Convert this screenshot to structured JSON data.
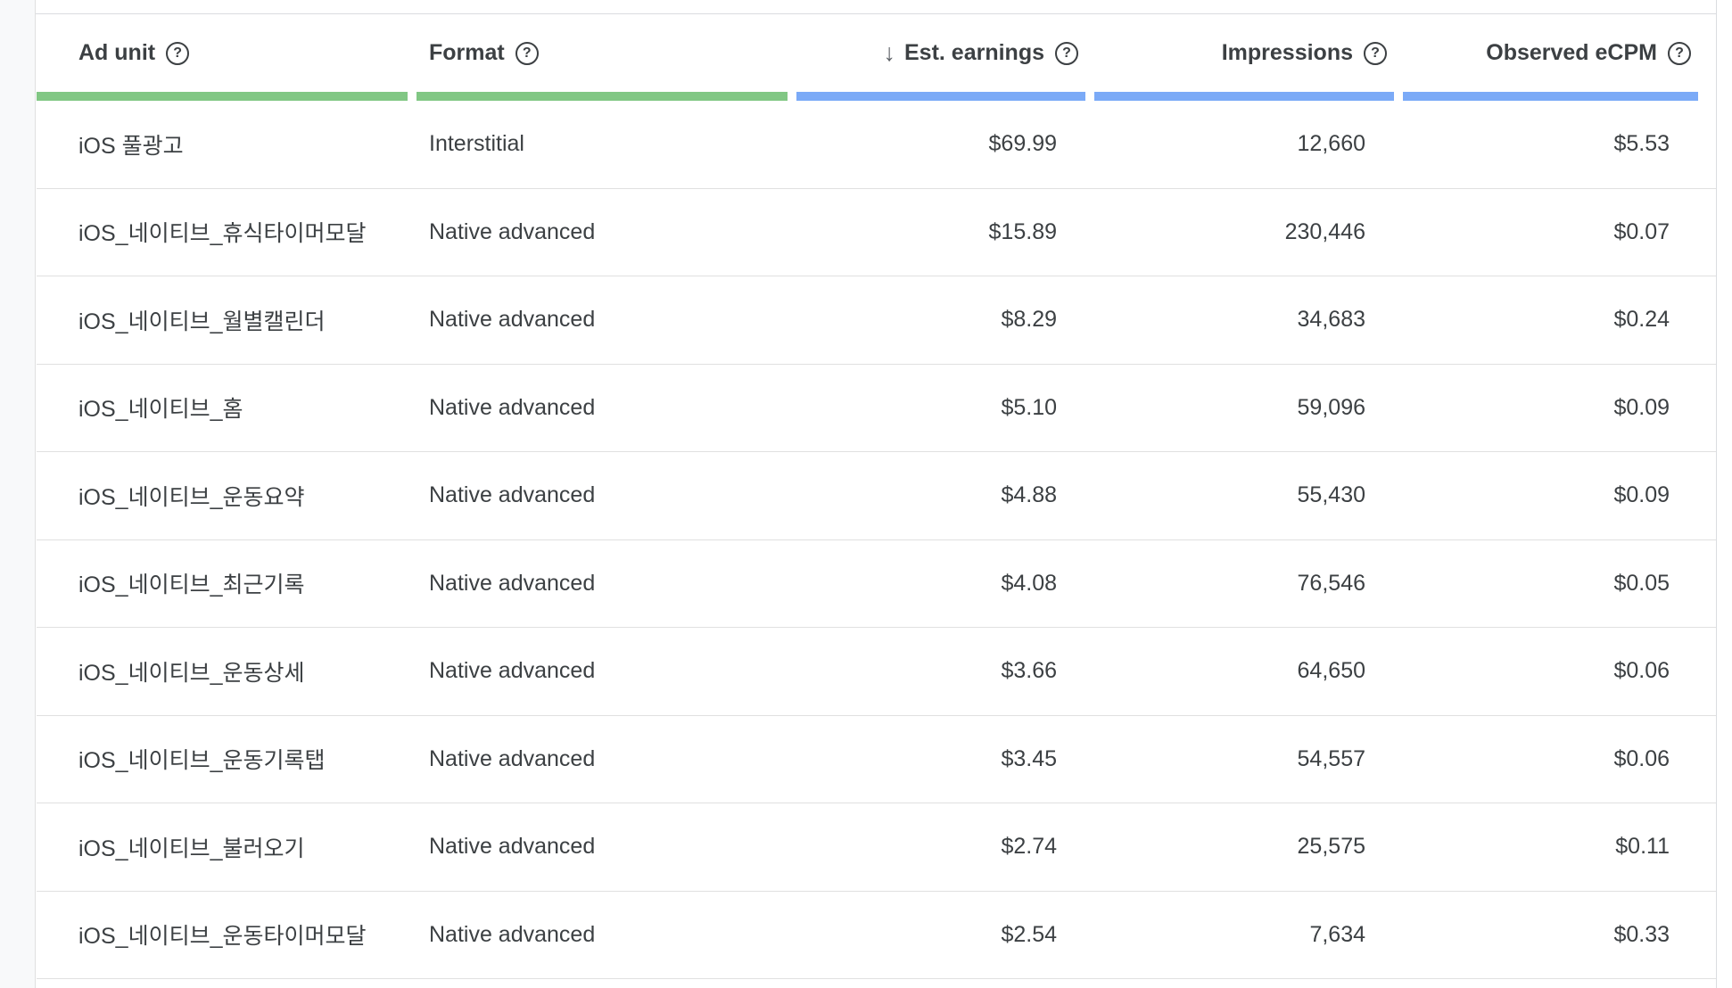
{
  "table": {
    "columns": [
      {
        "label": "Ad unit",
        "type": "dimension"
      },
      {
        "label": "Format",
        "type": "dimension"
      },
      {
        "label": "Est. earnings",
        "type": "metric",
        "sorted": "descending"
      },
      {
        "label": "Impressions",
        "type": "metric"
      },
      {
        "label": "Observed eCPM",
        "type": "metric"
      }
    ],
    "rows": [
      {
        "ad_unit": "iOS 풀광고",
        "format": "Interstitial",
        "est_earnings": "$69.99",
        "impressions": "12,660",
        "observed_ecpm": "$5.53"
      },
      {
        "ad_unit": "iOS_네이티브_휴식타이머모달",
        "format": "Native advanced",
        "est_earnings": "$15.89",
        "impressions": "230,446",
        "observed_ecpm": "$0.07"
      },
      {
        "ad_unit": "iOS_네이티브_월별캘린더",
        "format": "Native advanced",
        "est_earnings": "$8.29",
        "impressions": "34,683",
        "observed_ecpm": "$0.24"
      },
      {
        "ad_unit": "iOS_네이티브_홈",
        "format": "Native advanced",
        "est_earnings": "$5.10",
        "impressions": "59,096",
        "observed_ecpm": "$0.09"
      },
      {
        "ad_unit": "iOS_네이티브_운동요약",
        "format": "Native advanced",
        "est_earnings": "$4.88",
        "impressions": "55,430",
        "observed_ecpm": "$0.09"
      },
      {
        "ad_unit": "iOS_네이티브_최근기록",
        "format": "Native advanced",
        "est_earnings": "$4.08",
        "impressions": "76,546",
        "observed_ecpm": "$0.05"
      },
      {
        "ad_unit": "iOS_네이티브_운동상세",
        "format": "Native advanced",
        "est_earnings": "$3.66",
        "impressions": "64,650",
        "observed_ecpm": "$0.06"
      },
      {
        "ad_unit": "iOS_네이티브_운동기록탭",
        "format": "Native advanced",
        "est_earnings": "$3.45",
        "impressions": "54,557",
        "observed_ecpm": "$0.06"
      },
      {
        "ad_unit": "iOS_네이티브_불러오기",
        "format": "Native advanced",
        "est_earnings": "$2.74",
        "impressions": "25,575",
        "observed_ecpm": "$0.11"
      },
      {
        "ad_unit": "iOS_네이티브_운동타이머모달",
        "format": "Native advanced",
        "est_earnings": "$2.54",
        "impressions": "7,634",
        "observed_ecpm": "$0.33"
      }
    ]
  },
  "icons": {
    "help": "?",
    "sort_desc": "↓"
  },
  "colors": {
    "green_bar": "#81c784",
    "blue_bar": "#7baaf7"
  }
}
